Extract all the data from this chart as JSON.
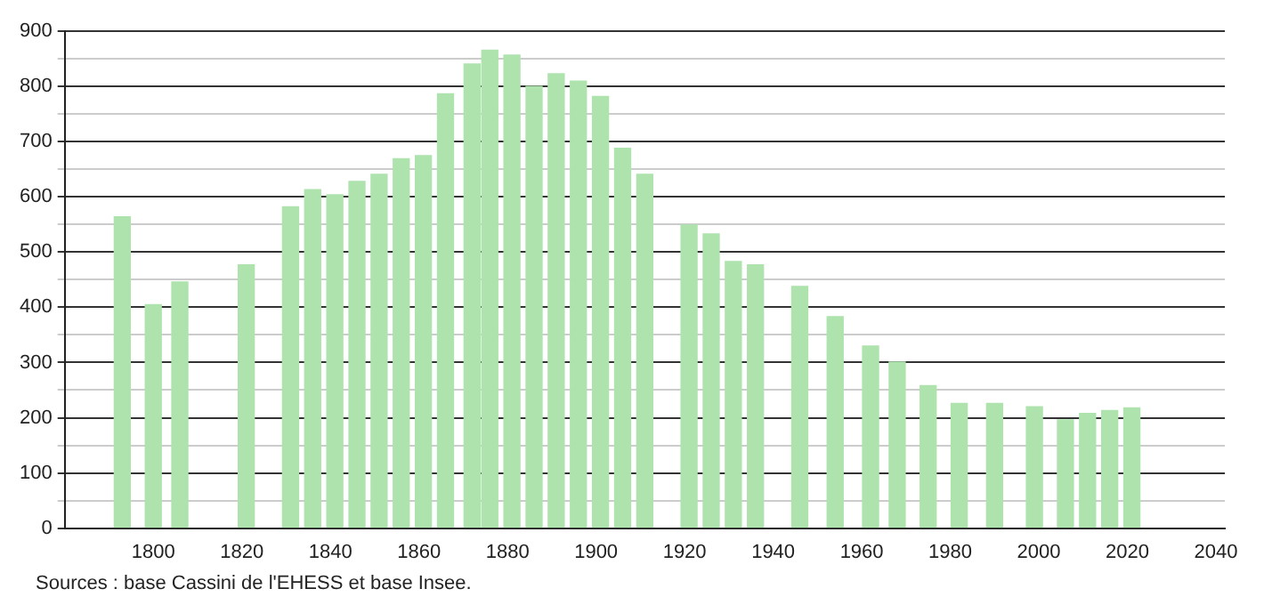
{
  "chart_data": {
    "type": "bar",
    "x": [
      1793,
      1800,
      1806,
      1821,
      1831,
      1836,
      1841,
      1846,
      1851,
      1856,
      1861,
      1866,
      1872,
      1876,
      1881,
      1886,
      1891,
      1896,
      1901,
      1906,
      1911,
      1921,
      1926,
      1931,
      1936,
      1946,
      1954,
      1962,
      1968,
      1975,
      1982,
      1990,
      1999,
      2006,
      2011,
      2016,
      2021
    ],
    "values": [
      564,
      405,
      446,
      477,
      582,
      613,
      604,
      628,
      641,
      669,
      675,
      787,
      841,
      866,
      857,
      800,
      823,
      810,
      782,
      688,
      641,
      549,
      533,
      483,
      477,
      438,
      383,
      330,
      301,
      258,
      226,
      226,
      220,
      196,
      208,
      213,
      218
    ],
    "color": "#aee3ae",
    "xlim": [
      1780,
      2042
    ],
    "xticks": [
      1800,
      1820,
      1840,
      1860,
      1880,
      1900,
      1920,
      1940,
      1960,
      1980,
      2000,
      2020,
      2040
    ],
    "ylim": [
      0,
      900
    ],
    "yticks": [
      0,
      {
        "value": 50,
        "label": null
      },
      100,
      {
        "value": 150,
        "label": null
      },
      200,
      {
        "value": 250,
        "label": null
      },
      300,
      {
        "value": 350,
        "label": null
      },
      400,
      {
        "value": 450,
        "label": null
      },
      500,
      {
        "value": 550,
        "label": null
      },
      600,
      {
        "value": 650,
        "label": null
      },
      700,
      {
        "value": 750,
        "label": null
      },
      800,
      {
        "value": 850,
        "label": null
      },
      900
    ],
    "grid": "y",
    "annotations": [
      "Sources : base Cassini de l'EHESS et base Insee."
    ]
  }
}
